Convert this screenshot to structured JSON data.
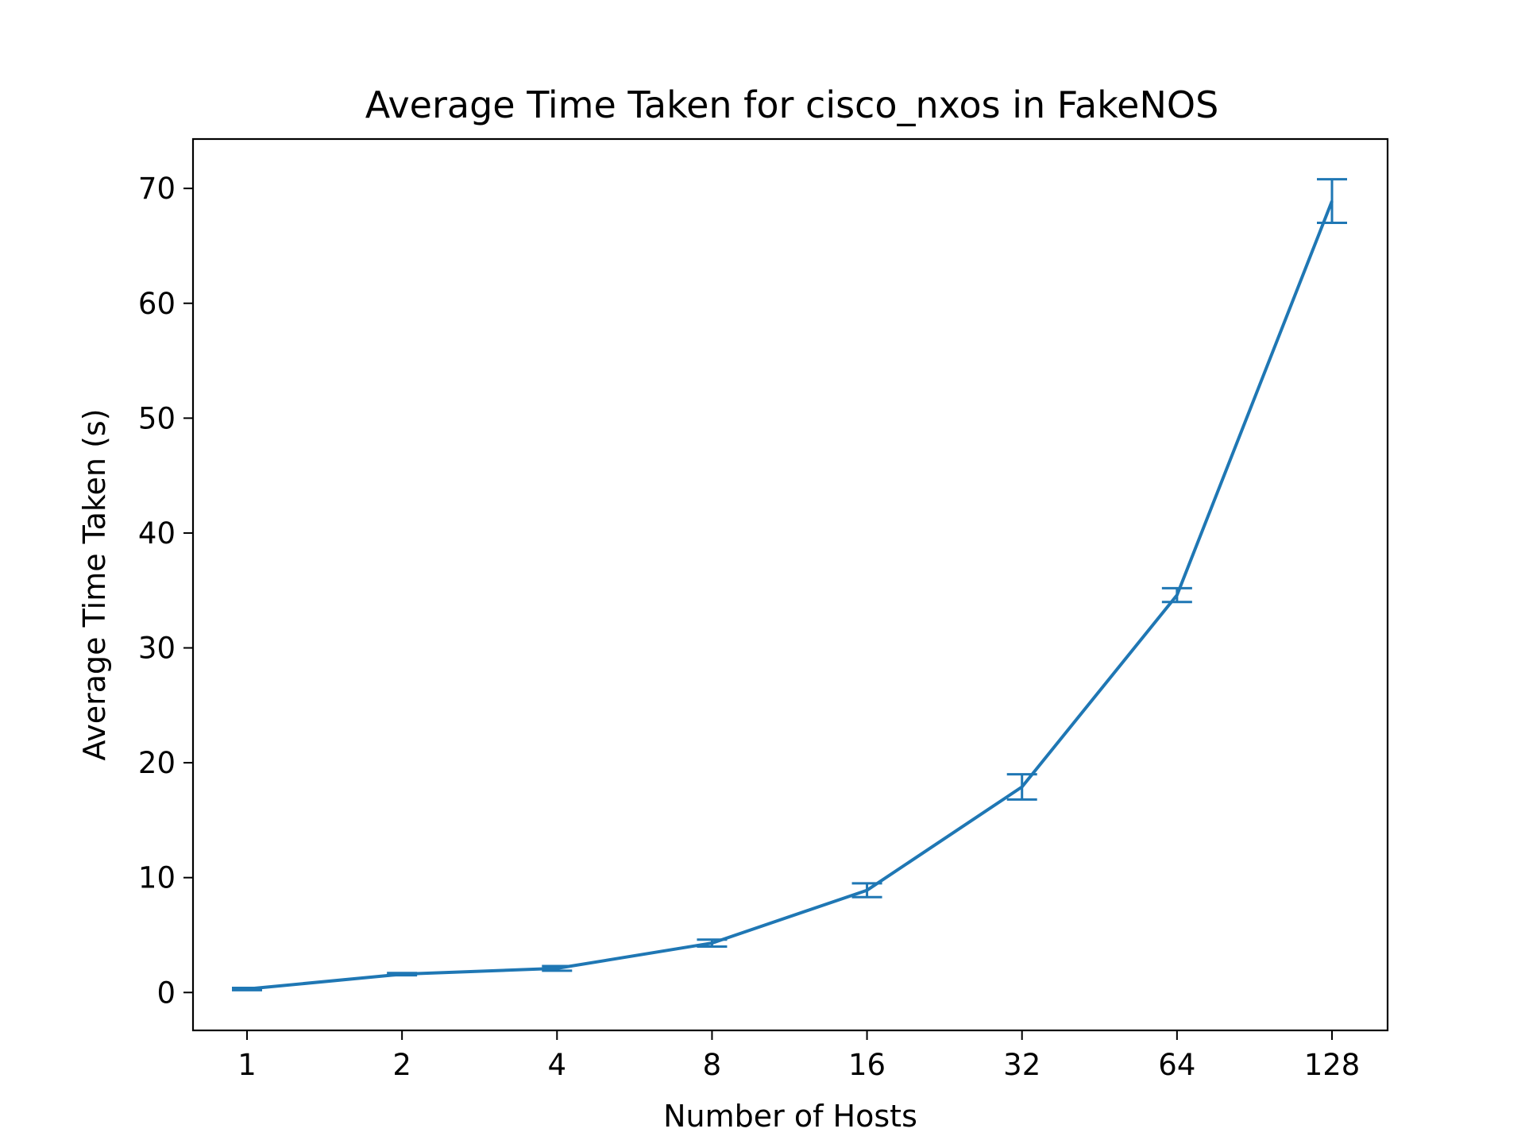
{
  "chart_data": {
    "type": "line",
    "title": "Average Time Taken for cisco_nxos in FakeNOS",
    "xlabel": "Number of Hosts",
    "ylabel": "Average Time Taken (s)",
    "x_scale": "log2",
    "categories": [
      "1",
      "2",
      "4",
      "8",
      "16",
      "32",
      "64",
      "128"
    ],
    "x": [
      1,
      2,
      4,
      8,
      16,
      32,
      64,
      128
    ],
    "yticks": [
      "0",
      "10",
      "20",
      "30",
      "40",
      "50",
      "60",
      "70"
    ],
    "ylim": [
      -3.3,
      74.3
    ],
    "grid": false,
    "series": [
      {
        "values": [
          0.3,
          1.6,
          2.1,
          4.3,
          8.9,
          17.9,
          34.6,
          68.9
        ],
        "error": [
          0.1,
          0.1,
          0.2,
          0.3,
          0.6,
          1.1,
          0.6,
          1.9
        ]
      }
    ],
    "colors": {
      "series": "#1f77b4"
    }
  }
}
